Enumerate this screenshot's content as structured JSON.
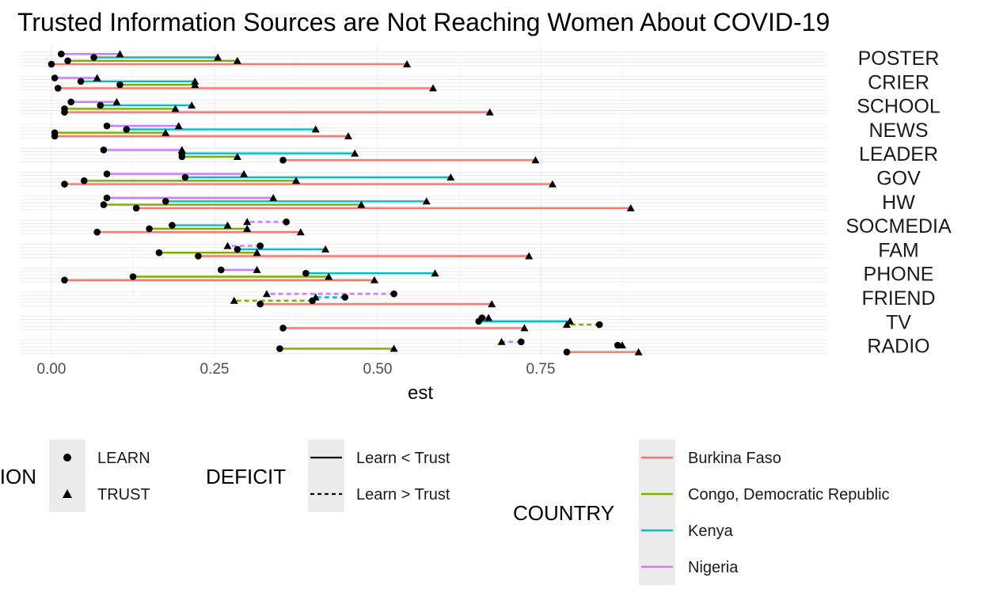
{
  "chart_data": {
    "type": "dumbbell",
    "title": "Trusted Information Sources are Not Reaching Women About COVID-19",
    "xlabel": "est",
    "ylabel": "",
    "xlim": [
      0,
      0.95
    ],
    "x_ticks": [
      0.0,
      0.25,
      0.5,
      0.75
    ],
    "x_tick_labels": [
      "0.00",
      "0.25",
      "0.50",
      "0.75"
    ],
    "grid": true,
    "categories": [
      "POSTER",
      "CRIER",
      "SCHOOL",
      "NEWS",
      "LEADER",
      "GOV",
      "HW",
      "SOCMEDIA",
      "FAM",
      "PHONE",
      "FRIEND",
      "TV",
      "RADIO"
    ],
    "series": [
      {
        "name": "Burkina Faso",
        "color": "#F8766D",
        "data": [
          {
            "category": "POSTER",
            "learn": 0.0,
            "trust": 0.545
          },
          {
            "category": "CRIER",
            "learn": 0.01,
            "trust": 0.585
          },
          {
            "category": "SCHOOL",
            "learn": 0.02,
            "trust": 0.672
          },
          {
            "category": "NEWS",
            "learn": 0.005,
            "trust": 0.455
          },
          {
            "category": "LEADER",
            "learn": 0.355,
            "trust": 0.742
          },
          {
            "category": "GOV",
            "learn": 0.02,
            "trust": 0.768
          },
          {
            "category": "HW",
            "learn": 0.13,
            "trust": 0.888
          },
          {
            "category": "SOCMEDIA",
            "learn": 0.07,
            "trust": 0.382
          },
          {
            "category": "FAM",
            "learn": 0.225,
            "trust": 0.732
          },
          {
            "category": "PHONE",
            "learn": 0.02,
            "trust": 0.495
          },
          {
            "category": "FRIEND",
            "learn": 0.32,
            "trust": 0.675
          },
          {
            "category": "TV",
            "learn": 0.355,
            "trust": 0.725
          },
          {
            "category": "RADIO",
            "learn": 0.79,
            "trust": 0.9
          }
        ]
      },
      {
        "name": "Congo, Democratic Republic",
        "color": "#7CAE00",
        "data": [
          {
            "category": "POSTER",
            "learn": 0.025,
            "trust": 0.285
          },
          {
            "category": "CRIER",
            "learn": 0.105,
            "trust": 0.22
          },
          {
            "category": "SCHOOL",
            "learn": 0.02,
            "trust": 0.19
          },
          {
            "category": "NEWS",
            "learn": 0.005,
            "trust": 0.175
          },
          {
            "category": "LEADER",
            "learn": 0.2,
            "trust": 0.285
          },
          {
            "category": "GOV",
            "learn": 0.05,
            "trust": 0.375
          },
          {
            "category": "HW",
            "learn": 0.08,
            "trust": 0.475
          },
          {
            "category": "SOCMEDIA",
            "learn": 0.15,
            "trust": 0.3
          },
          {
            "category": "FAM",
            "learn": 0.165,
            "trust": 0.315
          },
          {
            "category": "PHONE",
            "learn": 0.125,
            "trust": 0.425
          },
          {
            "category": "FRIEND",
            "learn": 0.4,
            "trust": 0.28
          },
          {
            "category": "TV",
            "learn": 0.84,
            "trust": 0.79
          },
          {
            "category": "RADIO",
            "learn": 0.35,
            "trust": 0.525
          }
        ]
      },
      {
        "name": "Kenya",
        "color": "#00BFC4",
        "data": [
          {
            "category": "POSTER",
            "learn": 0.065,
            "trust": 0.255
          },
          {
            "category": "CRIER",
            "learn": 0.045,
            "trust": 0.22
          },
          {
            "category": "SCHOOL",
            "learn": 0.075,
            "trust": 0.215
          },
          {
            "category": "NEWS",
            "learn": 0.115,
            "trust": 0.405
          },
          {
            "category": "LEADER",
            "learn": 0.2,
            "trust": 0.465
          },
          {
            "category": "GOV",
            "learn": 0.205,
            "trust": 0.612
          },
          {
            "category": "HW",
            "learn": 0.175,
            "trust": 0.575
          },
          {
            "category": "SOCMEDIA",
            "learn": 0.185,
            "trust": 0.27
          },
          {
            "category": "FAM",
            "learn": 0.285,
            "trust": 0.42
          },
          {
            "category": "PHONE",
            "learn": 0.39,
            "trust": 0.588
          },
          {
            "category": "FRIEND",
            "learn": 0.45,
            "trust": 0.405
          },
          {
            "category": "TV",
            "learn": 0.655,
            "trust": 0.795
          },
          {
            "category": "RADIO",
            "learn": 0.868,
            "trust": 0.875
          }
        ]
      },
      {
        "name": "Nigeria",
        "color": "#C77CFF",
        "data": [
          {
            "category": "POSTER",
            "learn": 0.015,
            "trust": 0.105
          },
          {
            "category": "CRIER",
            "learn": 0.005,
            "trust": 0.07
          },
          {
            "category": "SCHOOL",
            "learn": 0.03,
            "trust": 0.1
          },
          {
            "category": "NEWS",
            "learn": 0.085,
            "trust": 0.195
          },
          {
            "category": "LEADER",
            "learn": 0.08,
            "trust": 0.2
          },
          {
            "category": "GOV",
            "learn": 0.085,
            "trust": 0.295
          },
          {
            "category": "HW",
            "learn": 0.085,
            "trust": 0.34
          },
          {
            "category": "SOCMEDIA",
            "learn": 0.36,
            "trust": 0.3
          },
          {
            "category": "FAM",
            "learn": 0.32,
            "trust": 0.27
          },
          {
            "category": "PHONE",
            "learn": 0.26,
            "trust": 0.315
          },
          {
            "category": "FRIEND",
            "learn": 0.525,
            "trust": 0.33
          },
          {
            "category": "TV",
            "learn": 0.66,
            "trust": 0.67
          },
          {
            "category": "RADIO",
            "learn": 0.72,
            "trust": 0.69
          }
        ]
      }
    ],
    "legends": {
      "shape": {
        "title": "DIRECTION",
        "items": [
          {
            "label": "LEARN",
            "shape": "circle"
          },
          {
            "label": "TRUST",
            "shape": "triangle"
          }
        ]
      },
      "deficit": {
        "title": "DEFICIT",
        "items": [
          {
            "label": "Learn < Trust",
            "linetype": "solid"
          },
          {
            "label": "Learn > Trust",
            "linetype": "dashed"
          }
        ]
      },
      "country": {
        "title": "COUNTRY",
        "items": [
          "Burkina Faso",
          "Congo, Democratic Republic",
          "Kenya",
          "Nigeria"
        ]
      }
    },
    "legend_placement": "bottom"
  }
}
